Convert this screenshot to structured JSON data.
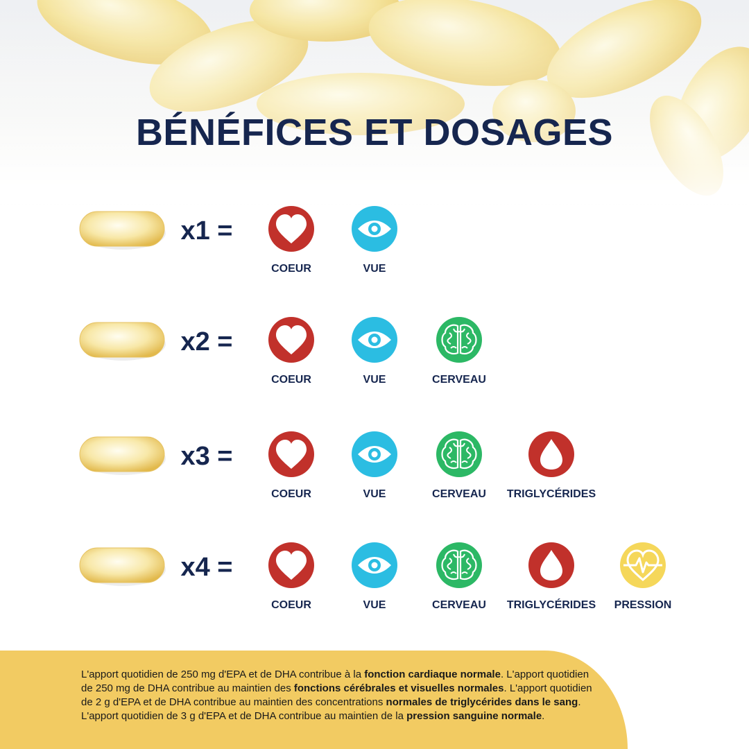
{
  "title": "BÉNÉFICES ET DOSAGES",
  "rows": [
    {
      "dose": "x1 =",
      "benefits": [
        "COEUR",
        "VUE"
      ]
    },
    {
      "dose": "x2 =",
      "benefits": [
        "COEUR",
        "VUE",
        "CERVEAU"
      ]
    },
    {
      "dose": "x3 =",
      "benefits": [
        "COEUR",
        "VUE",
        "CERVEAU",
        "TRIGLYCÉRIDES"
      ]
    },
    {
      "dose": "x4 =",
      "benefits": [
        "COEUR",
        "VUE",
        "CERVEAU",
        "TRIGLYCÉRIDES",
        "PRESSION"
      ]
    }
  ],
  "footnote": [
    {
      "text": "L'apport quotidien de 250 mg d'EPA et de DHA contribue à la ",
      "bold": false
    },
    {
      "text": "fonction cardiaque normale",
      "bold": true
    },
    {
      "text": ". L'apport quotidien de 250 mg de DHA contribue au maintien des ",
      "bold": false
    },
    {
      "text": "fonctions cérébrales et visuelles normales",
      "bold": true
    },
    {
      "text": ". L'apport quotidien de 2 g d'EPA et de DHA contribue au maintien des concentrations ",
      "bold": false
    },
    {
      "text": "normales de triglycérides dans le sang",
      "bold": true
    },
    {
      "text": ". L'apport quotidien de 3 g d'EPA et de DHA contribue au maintien de la ",
      "bold": false
    },
    {
      "text": "pression sanguine normale",
      "bold": true
    },
    {
      "text": ".",
      "bold": false
    }
  ]
}
